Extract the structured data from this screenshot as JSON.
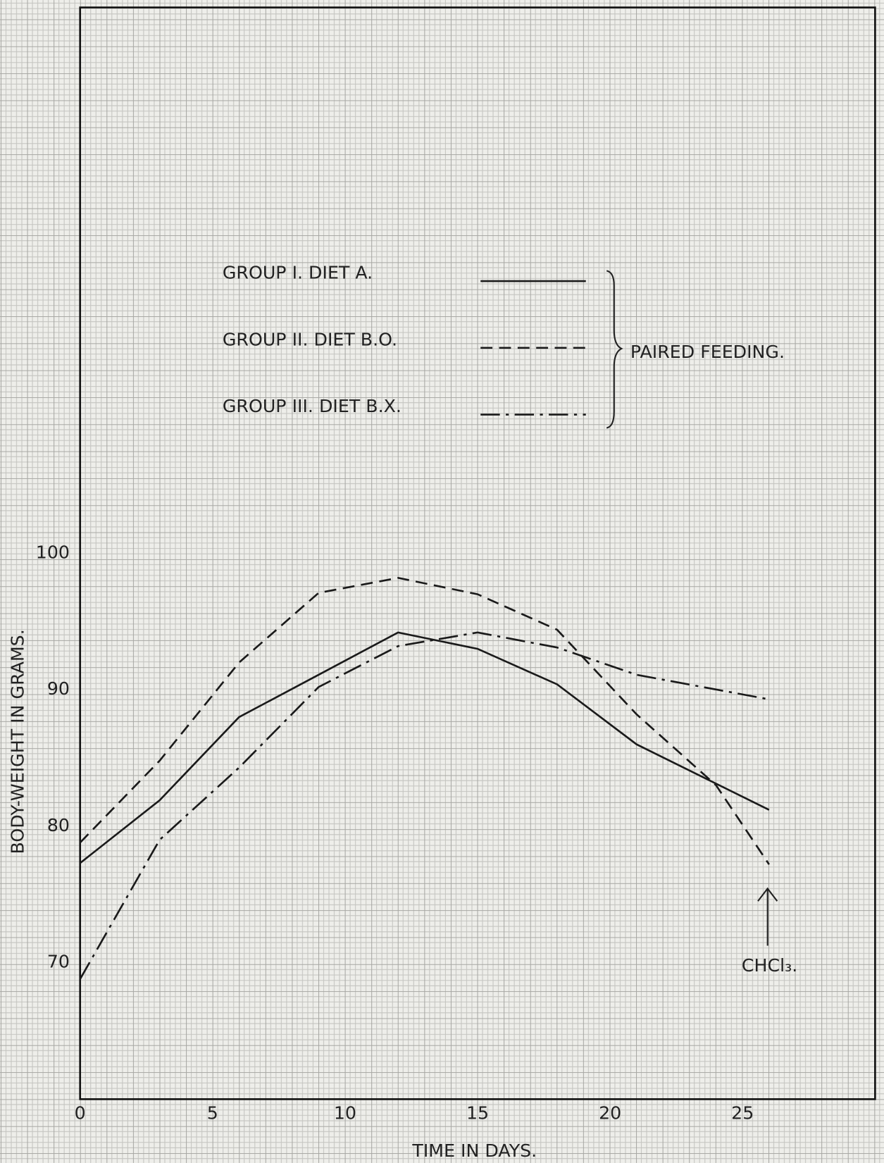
{
  "chart_data": {
    "type": "line",
    "xlabel": "TIME IN DAYS.",
    "ylabel": "BODY-WEIGHT IN GRAMS.",
    "xlim": [
      0,
      30
    ],
    "ylim": [
      60,
      140
    ],
    "xticks": [
      0,
      5,
      10,
      15,
      20,
      25
    ],
    "yticks": [
      70,
      80,
      90,
      100
    ],
    "series": [
      {
        "name": "GROUP I. DIET A.",
        "color": "#1a1a1a",
        "style": "solid",
        "x": [
          0,
          3,
          6,
          9,
          12,
          15,
          18,
          21,
          26
        ],
        "values": [
          77.3,
          81.9,
          88.0,
          91.1,
          94.2,
          93.0,
          90.4,
          86.0,
          81.2
        ]
      },
      {
        "name": "GROUP II. DIET B.O.",
        "color": "#1a1a1a",
        "style": "dashed",
        "x": [
          0,
          3,
          6,
          9,
          12,
          15,
          18,
          21,
          24,
          26
        ],
        "values": [
          78.8,
          84.8,
          92.0,
          97.1,
          98.2,
          97.0,
          94.4,
          88.2,
          83.0,
          77.2
        ]
      },
      {
        "name": "GROUP III. DIET B.X.",
        "color": "#1a1a1a",
        "style": "dashdot",
        "x": [
          0,
          3,
          6,
          9,
          12,
          15,
          18,
          21,
          26
        ],
        "values": [
          68.8,
          79.0,
          84.3,
          90.2,
          93.2,
          94.2,
          93.1,
          91.1,
          89.3
        ]
      }
    ],
    "legend_group_label": "PAIRED FEEDING.",
    "annotation": "CHCl₃."
  }
}
